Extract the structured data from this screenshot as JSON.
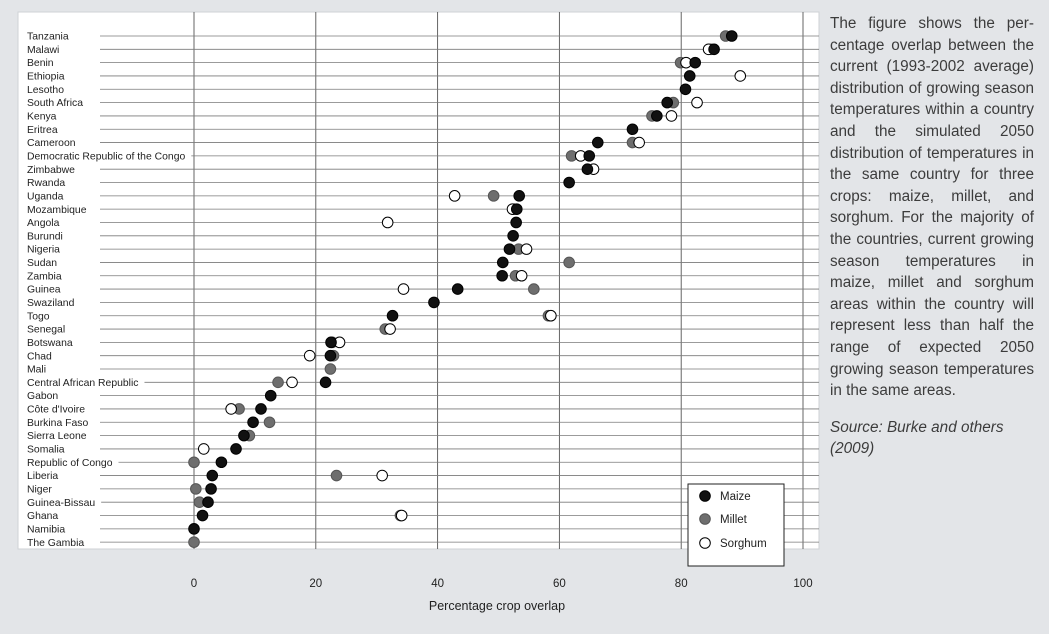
{
  "caption": "The figure shows the per­centage overlap between the current (1993-2002 av­erage) distribution of grow­ing season temperatures within a country and the simulated 2050 distribution of temperatures in the same country for three crops: maize, millet, and sorghum. For the majority of the coun­tries, current growing sea­son temperatures in maize, millet and sorghum areas within the country will repre­sent less than half the range of expected 2050 growing season temperatures in the same areas.",
  "source": "Source: Burke and others (2009)",
  "chart_data": {
    "type": "scatter",
    "xlabel": "Percentage crop overlap",
    "xlim": [
      0,
      100
    ],
    "xticks": [
      0,
      20,
      40,
      60,
      80,
      100
    ],
    "grid": "vertical",
    "legend_position": "bottom-right",
    "colors": {
      "Maize": "#111111",
      "Millet": "#6e6e6e",
      "Sorghum": "#ffffff"
    },
    "categories": [
      "Tanzania",
      "Malawi",
      "Benin",
      "Ethiopia",
      "Lesotho",
      "South Africa",
      "Kenya",
      "Eritrea",
      "Cameroon",
      "Democratic Republic of the Congo",
      "Zimbabwe",
      "Rwanda",
      "Uganda",
      "Mozambique",
      "Angola",
      "Burundi",
      "Nigeria",
      "Sudan",
      "Zambia",
      "Guinea",
      "Swaziland",
      "Togo",
      "Senegal",
      "Botswana",
      "Chad",
      "Mali",
      "Central African Republic",
      "Gabon",
      "Côte d'Ivoire",
      "Burkina Faso",
      "Sierra Leone",
      "Somalia",
      "Republic of Congo",
      "Liberia",
      "Niger",
      "Guinea-Bissau",
      "Ghana",
      "Namibia",
      "The Gambia"
    ],
    "series": [
      {
        "name": "Millet",
        "values": [
          87.3,
          84.9,
          79.9,
          null,
          null,
          78.7,
          75.2,
          null,
          72.0,
          62.0,
          null,
          null,
          49.2,
          52.6,
          null,
          null,
          53.3,
          61.6,
          52.8,
          55.8,
          null,
          58.2,
          31.4,
          22.7,
          22.9,
          22.4,
          13.8,
          null,
          7.4,
          12.4,
          9.1,
          null,
          0.0,
          23.4,
          0.3,
          0.9,
          33.9,
          null,
          0.0
        ]
      },
      {
        "name": "Sorghum",
        "values": [
          null,
          84.5,
          80.8,
          89.7,
          null,
          82.6,
          78.4,
          null,
          73.1,
          63.5,
          65.6,
          null,
          42.8,
          52.3,
          31.8,
          null,
          54.6,
          null,
          53.8,
          34.4,
          null,
          58.6,
          32.2,
          23.9,
          19.0,
          null,
          16.1,
          null,
          6.1,
          null,
          null,
          1.6,
          null,
          30.9,
          null,
          null,
          34.1,
          null,
          null
        ]
      },
      {
        "name": "Maize",
        "values": [
          88.3,
          85.4,
          82.3,
          81.4,
          80.7,
          77.7,
          76.0,
          72.0,
          66.3,
          64.9,
          64.6,
          61.6,
          53.4,
          53.0,
          52.9,
          52.4,
          51.8,
          50.7,
          50.6,
          43.3,
          39.4,
          32.6,
          null,
          22.5,
          22.4,
          null,
          21.6,
          12.6,
          11.0,
          9.7,
          8.2,
          6.9,
          4.5,
          3.0,
          2.8,
          2.3,
          1.4,
          0.0,
          null
        ]
      }
    ]
  }
}
